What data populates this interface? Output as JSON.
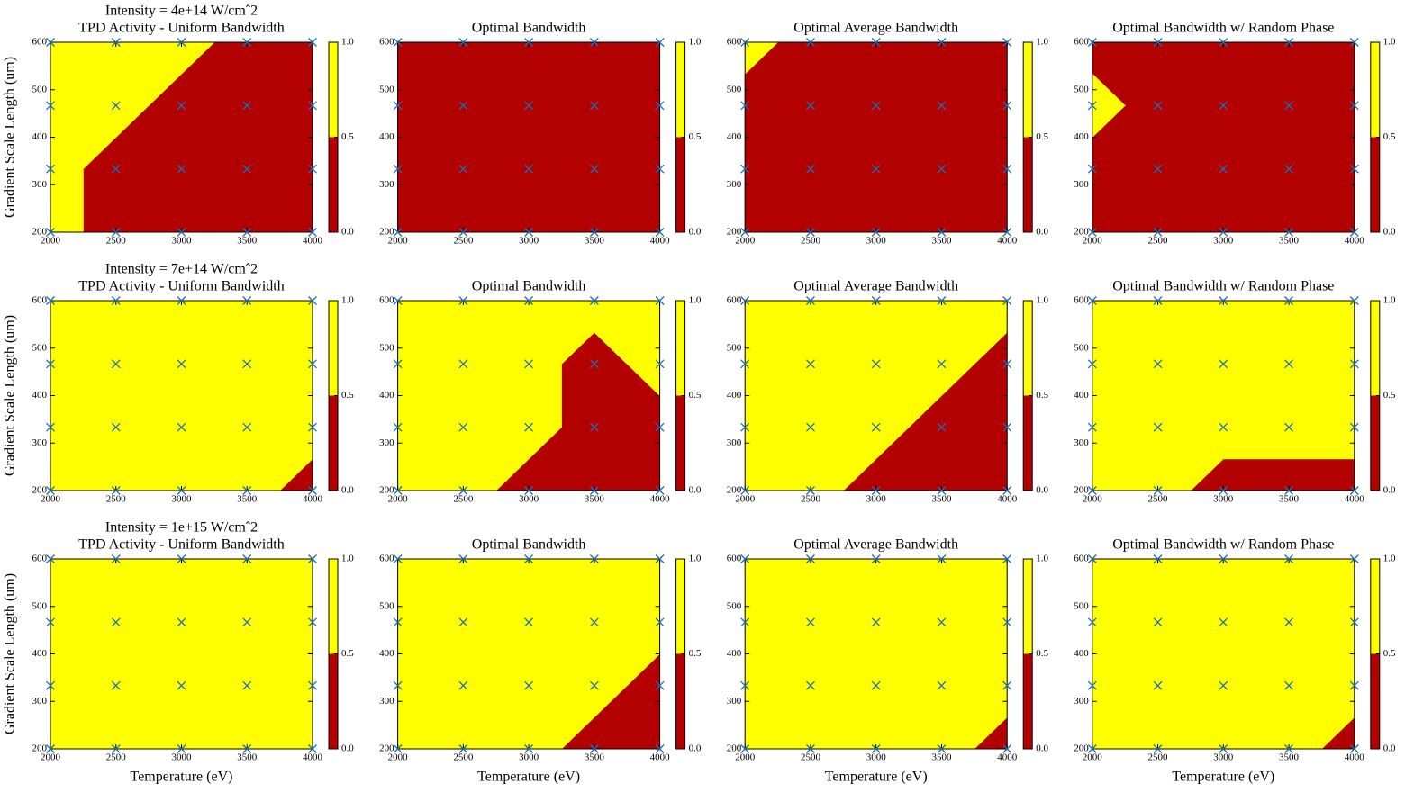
{
  "chart_data": [
    {
      "type": "contour",
      "annotation": "Intensity = 4e+14 W/cmˆ2",
      "title": "TPD Activity - Uniform Bandwidth",
      "ylabel": "Gradient Scale Length (um)",
      "x": [
        2000,
        2500,
        3000,
        3500,
        4000
      ],
      "y": [
        200,
        333.3,
        466.7,
        600
      ],
      "z": [
        [
          1,
          0,
          0,
          0,
          0
        ],
        [
          1,
          0,
          0,
          0,
          0
        ],
        [
          1,
          1,
          0,
          0,
          0
        ],
        [
          1,
          1,
          1,
          0,
          0
        ]
      ],
      "xlim": [
        2000,
        4000
      ],
      "ylim": [
        200,
        600
      ],
      "xticks": [
        2000,
        2500,
        3000,
        3500,
        4000
      ],
      "yticks": [
        200,
        300,
        400,
        500,
        600
      ],
      "levels": [
        0,
        0.5,
        1
      ],
      "colors": [
        "#b30000",
        "#ffff00"
      ],
      "marker_color": "#1f6eb5",
      "colorbar_ticks": [
        {
          "value": 0,
          "label": "0.0"
        },
        {
          "value": 0.5,
          "label": "0.5"
        },
        {
          "value": 1,
          "label": "1.0"
        }
      ]
    },
    {
      "type": "contour",
      "title": "Optimal Bandwidth",
      "x": [
        2000,
        2500,
        3000,
        3500,
        4000
      ],
      "y": [
        200,
        333.3,
        466.7,
        600
      ],
      "z": [
        [
          0,
          0,
          0,
          0,
          0
        ],
        [
          0,
          0,
          0,
          0,
          0
        ],
        [
          0,
          0,
          0,
          0,
          0
        ],
        [
          0,
          0,
          0,
          0,
          0
        ]
      ],
      "xlim": [
        2000,
        4000
      ],
      "ylim": [
        200,
        600
      ],
      "xticks": [
        2000,
        2500,
        3000,
        3500,
        4000
      ],
      "yticks": [
        200,
        300,
        400,
        500,
        600
      ],
      "levels": [
        0,
        0.5,
        1
      ],
      "colors": [
        "#b30000",
        "#ffff00"
      ],
      "marker_color": "#1f6eb5",
      "colorbar_ticks": [
        {
          "value": 0,
          "label": "0.0"
        },
        {
          "value": 0.5,
          "label": "0.5"
        },
        {
          "value": 1,
          "label": "1.0"
        }
      ]
    },
    {
      "type": "contour",
      "title": "Optimal Average Bandwidth",
      "x": [
        2000,
        2500,
        3000,
        3500,
        4000
      ],
      "y": [
        200,
        333.3,
        466.7,
        600
      ],
      "z": [
        [
          0,
          0,
          0,
          0,
          0
        ],
        [
          0,
          0,
          0,
          0,
          0
        ],
        [
          0,
          0,
          0,
          0,
          0
        ],
        [
          1,
          0,
          0,
          0,
          0
        ]
      ],
      "xlim": [
        2000,
        4000
      ],
      "ylim": [
        200,
        600
      ],
      "xticks": [
        2000,
        2500,
        3000,
        3500,
        4000
      ],
      "yticks": [
        200,
        300,
        400,
        500,
        600
      ],
      "levels": [
        0,
        0.5,
        1
      ],
      "colors": [
        "#b30000",
        "#ffff00"
      ],
      "marker_color": "#1f6eb5",
      "colorbar_ticks": [
        {
          "value": 0,
          "label": "0.0"
        },
        {
          "value": 0.5,
          "label": "0.5"
        },
        {
          "value": 1,
          "label": "1.0"
        }
      ]
    },
    {
      "type": "contour",
      "title": "Optimal  Bandwidth w/ Random Phase",
      "x": [
        2000,
        2500,
        3000,
        3500,
        4000
      ],
      "y": [
        200,
        333.3,
        466.7,
        600
      ],
      "z": [
        [
          0,
          0,
          0,
          0,
          0
        ],
        [
          0,
          0,
          0,
          0,
          0
        ],
        [
          1,
          0,
          0,
          0,
          0
        ],
        [
          0,
          0,
          0,
          0,
          0
        ]
      ],
      "xlim": [
        2000,
        4000
      ],
      "ylim": [
        200,
        600
      ],
      "xticks": [
        2000,
        2500,
        3000,
        3500,
        4000
      ],
      "yticks": [
        200,
        300,
        400,
        500,
        600
      ],
      "levels": [
        0,
        0.5,
        1
      ],
      "colors": [
        "#b30000",
        "#ffff00"
      ],
      "marker_color": "#1f6eb5",
      "colorbar_ticks": [
        {
          "value": 0,
          "label": "0.0"
        },
        {
          "value": 0.5,
          "label": "0.5"
        },
        {
          "value": 1,
          "label": "1.0"
        }
      ]
    },
    {
      "type": "contour",
      "annotation": "Intensity = 7e+14 W/cmˆ2",
      "title": "TPD Activity - Uniform Bandwidth",
      "ylabel": "Gradient Scale Length (um)",
      "x": [
        2000,
        2500,
        3000,
        3500,
        4000
      ],
      "y": [
        200,
        333.3,
        466.7,
        600
      ],
      "z": [
        [
          1,
          1,
          1,
          1,
          0
        ],
        [
          1,
          1,
          1,
          1,
          1
        ],
        [
          1,
          1,
          1,
          1,
          1
        ],
        [
          1,
          1,
          1,
          1,
          1
        ]
      ],
      "xlim": [
        2000,
        4000
      ],
      "ylim": [
        200,
        600
      ],
      "xticks": [
        2000,
        2500,
        3000,
        3500,
        4000
      ],
      "yticks": [
        200,
        300,
        400,
        500,
        600
      ],
      "levels": [
        0,
        0.5,
        1
      ],
      "colors": [
        "#b30000",
        "#ffff00"
      ],
      "marker_color": "#1f6eb5",
      "colorbar_ticks": [
        {
          "value": 0,
          "label": "0.0"
        },
        {
          "value": 0.5,
          "label": "0.5"
        },
        {
          "value": 1,
          "label": "1.0"
        }
      ]
    },
    {
      "type": "contour",
      "title": "Optimal Bandwidth",
      "x": [
        2000,
        2500,
        3000,
        3500,
        4000
      ],
      "y": [
        200,
        333.3,
        466.7,
        600
      ],
      "z": [
        [
          1,
          1,
          0,
          0,
          0
        ],
        [
          1,
          1,
          1,
          0,
          0
        ],
        [
          1,
          1,
          1,
          0,
          1
        ],
        [
          1,
          1,
          1,
          1,
          1
        ]
      ],
      "xlim": [
        2000,
        4000
      ],
      "ylim": [
        200,
        600
      ],
      "xticks": [
        2000,
        2500,
        3000,
        3500,
        4000
      ],
      "yticks": [
        200,
        300,
        400,
        500,
        600
      ],
      "levels": [
        0,
        0.5,
        1
      ],
      "colors": [
        "#b30000",
        "#ffff00"
      ],
      "marker_color": "#1f6eb5",
      "colorbar_ticks": [
        {
          "value": 0,
          "label": "0.0"
        },
        {
          "value": 0.5,
          "label": "0.5"
        },
        {
          "value": 1,
          "label": "1.0"
        }
      ]
    },
    {
      "type": "contour",
      "title": "Optimal Average Bandwidth",
      "x": [
        2000,
        2500,
        3000,
        3500,
        4000
      ],
      "y": [
        200,
        333.3,
        466.7,
        600
      ],
      "z": [
        [
          1,
          1,
          0,
          0,
          0
        ],
        [
          1,
          1,
          1,
          0,
          0
        ],
        [
          1,
          1,
          1,
          1,
          0
        ],
        [
          1,
          1,
          1,
          1,
          1
        ]
      ],
      "xlim": [
        2000,
        4000
      ],
      "ylim": [
        200,
        600
      ],
      "xticks": [
        2000,
        2500,
        3000,
        3500,
        4000
      ],
      "yticks": [
        200,
        300,
        400,
        500,
        600
      ],
      "levels": [
        0,
        0.5,
        1
      ],
      "colors": [
        "#b30000",
        "#ffff00"
      ],
      "marker_color": "#1f6eb5",
      "colorbar_ticks": [
        {
          "value": 0,
          "label": "0.0"
        },
        {
          "value": 0.5,
          "label": "0.5"
        },
        {
          "value": 1,
          "label": "1.0"
        }
      ]
    },
    {
      "type": "contour",
      "title": "Optimal  Bandwidth w/ Random Phase",
      "x": [
        2000,
        2500,
        3000,
        3500,
        4000
      ],
      "y": [
        200,
        333.3,
        466.7,
        600
      ],
      "z": [
        [
          1,
          1,
          0,
          0,
          0
        ],
        [
          1,
          1,
          1,
          1,
          1
        ],
        [
          1,
          1,
          1,
          1,
          1
        ],
        [
          1,
          1,
          1,
          1,
          1
        ]
      ],
      "xlim": [
        2000,
        4000
      ],
      "ylim": [
        200,
        600
      ],
      "xticks": [
        2000,
        2500,
        3000,
        3500,
        4000
      ],
      "yticks": [
        200,
        300,
        400,
        500,
        600
      ],
      "levels": [
        0,
        0.5,
        1
      ],
      "colors": [
        "#b30000",
        "#ffff00"
      ],
      "marker_color": "#1f6eb5",
      "colorbar_ticks": [
        {
          "value": 0,
          "label": "0.0"
        },
        {
          "value": 0.5,
          "label": "0.5"
        },
        {
          "value": 1,
          "label": "1.0"
        }
      ]
    },
    {
      "type": "contour",
      "annotation": "Intensity = 1e+15 W/cmˆ2",
      "title": "TPD Activity - Uniform Bandwidth",
      "ylabel": "Gradient Scale Length (um)",
      "xlabel": "Temperature (eV)",
      "x": [
        2000,
        2500,
        3000,
        3500,
        4000
      ],
      "y": [
        200,
        333.3,
        466.7,
        600
      ],
      "z": [
        [
          1,
          1,
          1,
          1,
          1
        ],
        [
          1,
          1,
          1,
          1,
          1
        ],
        [
          1,
          1,
          1,
          1,
          1
        ],
        [
          1,
          1,
          1,
          1,
          1
        ]
      ],
      "xlim": [
        2000,
        4000
      ],
      "ylim": [
        200,
        600
      ],
      "xticks": [
        2000,
        2500,
        3000,
        3500,
        4000
      ],
      "yticks": [
        200,
        300,
        400,
        500,
        600
      ],
      "levels": [
        0,
        0.5,
        1
      ],
      "colors": [
        "#b30000",
        "#ffff00"
      ],
      "marker_color": "#1f6eb5",
      "colorbar_ticks": [
        {
          "value": 0,
          "label": "0.0"
        },
        {
          "value": 0.5,
          "label": "0.5"
        },
        {
          "value": 1,
          "label": "1.0"
        }
      ]
    },
    {
      "type": "contour",
      "title": "Optimal Bandwidth",
      "xlabel": "Temperature (eV)",
      "x": [
        2000,
        2500,
        3000,
        3500,
        4000
      ],
      "y": [
        200,
        333.3,
        466.7,
        600
      ],
      "z": [
        [
          1,
          1,
          1,
          0,
          0
        ],
        [
          1,
          1,
          1,
          1,
          0
        ],
        [
          1,
          1,
          1,
          1,
          1
        ],
        [
          1,
          1,
          1,
          1,
          1
        ]
      ],
      "xlim": [
        2000,
        4000
      ],
      "ylim": [
        200,
        600
      ],
      "xticks": [
        2000,
        2500,
        3000,
        3500,
        4000
      ],
      "yticks": [
        200,
        300,
        400,
        500,
        600
      ],
      "levels": [
        0,
        0.5,
        1
      ],
      "colors": [
        "#b30000",
        "#ffff00"
      ],
      "marker_color": "#1f6eb5",
      "colorbar_ticks": [
        {
          "value": 0,
          "label": "0.0"
        },
        {
          "value": 0.5,
          "label": "0.5"
        },
        {
          "value": 1,
          "label": "1.0"
        }
      ]
    },
    {
      "type": "contour",
      "title": "Optimal Average Bandwidth",
      "xlabel": "Temperature (eV)",
      "x": [
        2000,
        2500,
        3000,
        3500,
        4000
      ],
      "y": [
        200,
        333.3,
        466.7,
        600
      ],
      "z": [
        [
          1,
          1,
          1,
          1,
          0
        ],
        [
          1,
          1,
          1,
          1,
          1
        ],
        [
          1,
          1,
          1,
          1,
          1
        ],
        [
          1,
          1,
          1,
          1,
          1
        ]
      ],
      "xlim": [
        2000,
        4000
      ],
      "ylim": [
        200,
        600
      ],
      "xticks": [
        2000,
        2500,
        3000,
        3500,
        4000
      ],
      "yticks": [
        200,
        300,
        400,
        500,
        600
      ],
      "levels": [
        0,
        0.5,
        1
      ],
      "colors": [
        "#b30000",
        "#ffff00"
      ],
      "marker_color": "#1f6eb5",
      "colorbar_ticks": [
        {
          "value": 0,
          "label": "0.0"
        },
        {
          "value": 0.5,
          "label": "0.5"
        },
        {
          "value": 1,
          "label": "1.0"
        }
      ]
    },
    {
      "type": "contour",
      "title": "Optimal  Bandwidth w/ Random Phase",
      "xlabel": "Temperature (eV)",
      "x": [
        2000,
        2500,
        3000,
        3500,
        4000
      ],
      "y": [
        200,
        333.3,
        466.7,
        600
      ],
      "z": [
        [
          1,
          1,
          1,
          1,
          0
        ],
        [
          1,
          1,
          1,
          1,
          1
        ],
        [
          1,
          1,
          1,
          1,
          1
        ],
        [
          1,
          1,
          1,
          1,
          1
        ]
      ],
      "xlim": [
        2000,
        4000
      ],
      "ylim": [
        200,
        600
      ],
      "xticks": [
        2000,
        2500,
        3000,
        3500,
        4000
      ],
      "yticks": [
        200,
        300,
        400,
        500,
        600
      ],
      "levels": [
        0,
        0.5,
        1
      ],
      "colors": [
        "#b30000",
        "#ffff00"
      ],
      "marker_color": "#1f6eb5",
      "colorbar_ticks": [
        {
          "value": 0,
          "label": "0.0"
        },
        {
          "value": 0.5,
          "label": "0.5"
        },
        {
          "value": 1,
          "label": "1.0"
        }
      ]
    }
  ]
}
